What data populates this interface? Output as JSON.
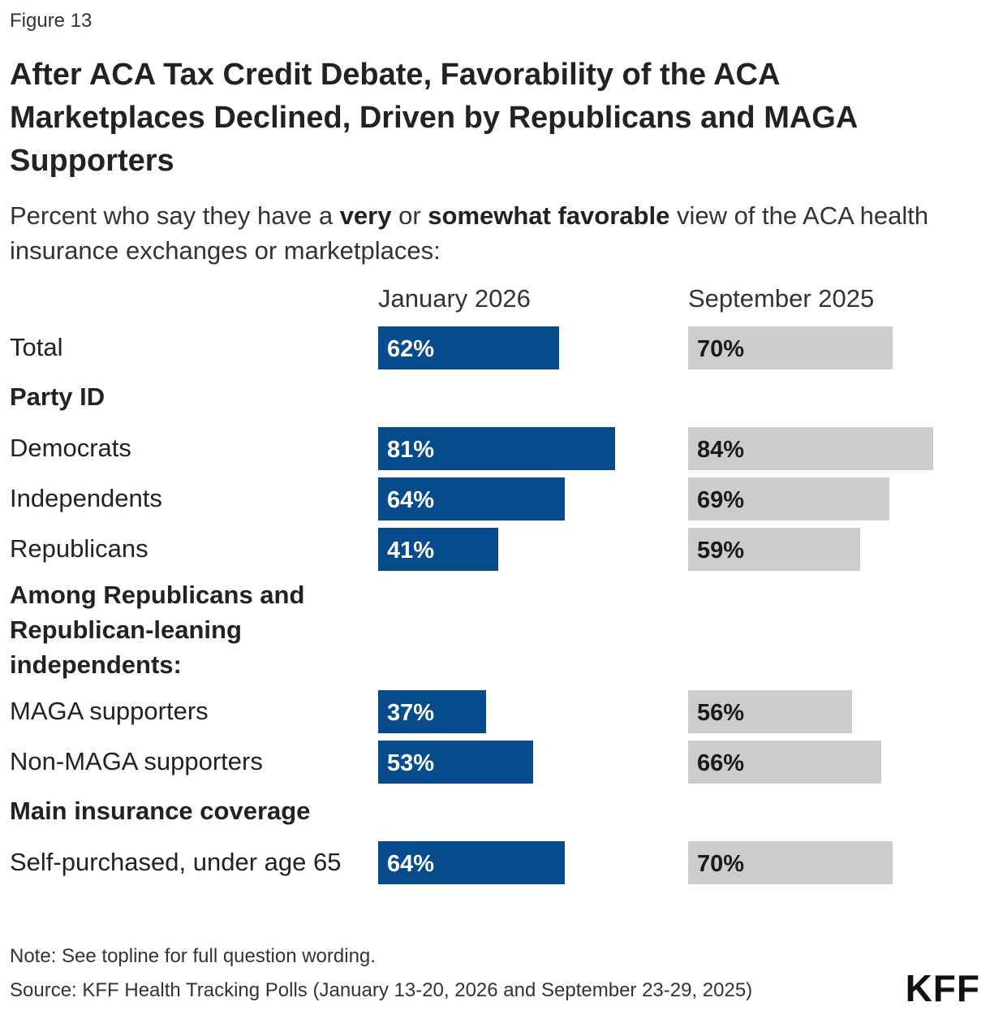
{
  "figure_label": "Figure 13",
  "title": "After ACA Tax Credit Debate, Favorability of the ACA Marketplaces Declined, Driven by Republicans and MAGA Supporters",
  "subtitle_parts": {
    "a": "Percent who say they have a ",
    "b": "very",
    "c": " or ",
    "d": "somewhat favorable",
    "e": " view of the ACA health insurance exchanges or marketplaces:"
  },
  "chart_data": {
    "type": "bar",
    "series": [
      {
        "name": "January 2026",
        "color": "#064c8d"
      },
      {
        "name": "September 2025",
        "color": "#cccccc"
      }
    ],
    "rows": [
      {
        "kind": "data",
        "label": "Total",
        "jan": 62,
        "sep": 70,
        "jan_label": "62%",
        "sep_label": "70%"
      },
      {
        "kind": "section",
        "label": "Party ID"
      },
      {
        "kind": "data",
        "label": "Democrats",
        "jan": 81,
        "sep": 84,
        "jan_label": "81%",
        "sep_label": "84%"
      },
      {
        "kind": "data",
        "label": "Independents",
        "jan": 64,
        "sep": 69,
        "jan_label": "64%",
        "sep_label": "69%"
      },
      {
        "kind": "data",
        "label": "Republicans",
        "jan": 41,
        "sep": 59,
        "jan_label": "41%",
        "sep_label": "59%"
      },
      {
        "kind": "section",
        "label": "Among Republicans and Republican-leaning independents:"
      },
      {
        "kind": "data",
        "label": "MAGA supporters",
        "jan": 37,
        "sep": 56,
        "jan_label": "37%",
        "sep_label": "56%"
      },
      {
        "kind": "data",
        "label": "Non-MAGA supporters",
        "jan": 53,
        "sep": 66,
        "jan_label": "53%",
        "sep_label": "66%"
      },
      {
        "kind": "section",
        "label": "Main insurance coverage"
      },
      {
        "kind": "data",
        "label": "Self-purchased, under age 65",
        "jan": 64,
        "sep": 70,
        "jan_label": "64%",
        "sep_label": "70%"
      }
    ]
  },
  "note": "Note: See topline for full question wording.",
  "source": "Source: KFF Health Tracking Polls (January 13-20, 2026 and September 23-29, 2025)",
  "logo": "KFF"
}
